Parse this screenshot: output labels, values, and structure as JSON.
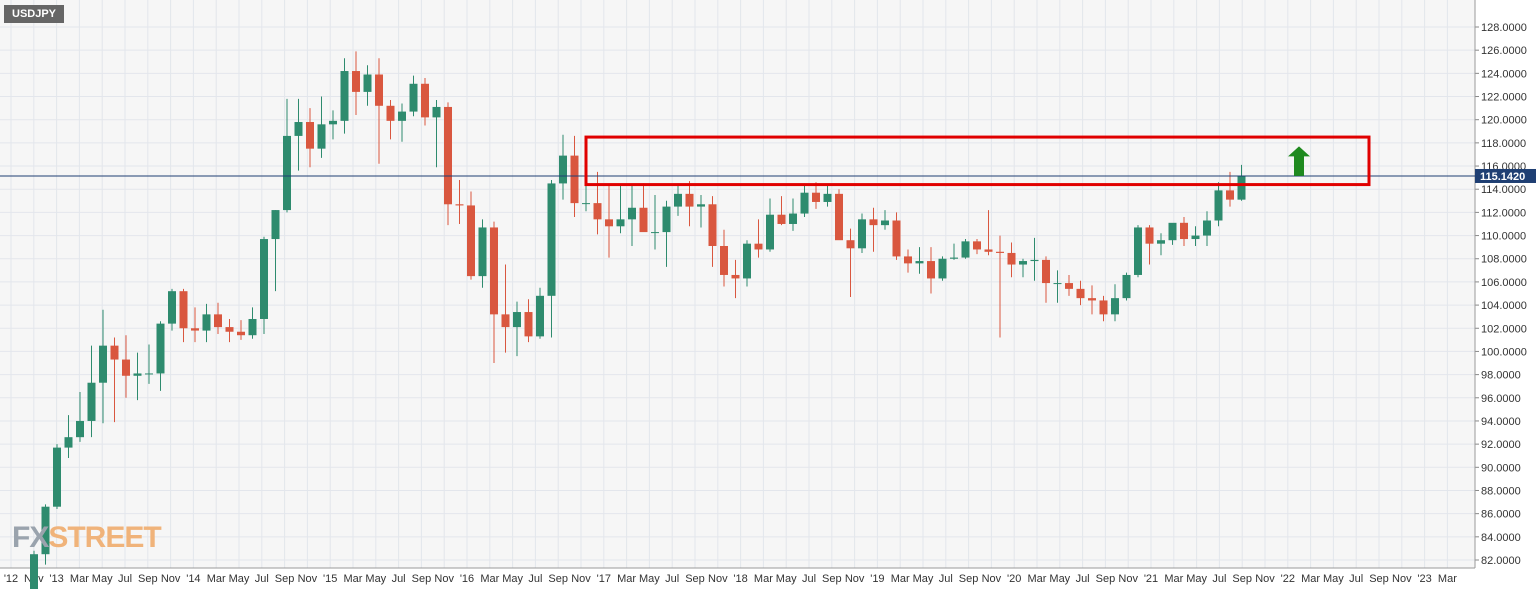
{
  "symbol": "USDJPY",
  "watermark": {
    "fx": "FX",
    "street": "STREET"
  },
  "colors": {
    "up": "#26a69a",
    "down": "#ef5350",
    "up_body": "#2e8b6e",
    "down_body": "#d9573f",
    "box": "#e00000",
    "arrow": "#1f8a1f",
    "price_line": "#1f3f73",
    "badge": "#1f3f73",
    "grid": "#e3e6ec",
    "plot_bg": "#f6f6f6"
  },
  "chart_data": {
    "type": "candlestick",
    "title": "",
    "xlabel": "",
    "ylabel": "",
    "ylim": [
      81.5,
      128.5
    ],
    "yticks": [
      "82.0000",
      "84.0000",
      "86.0000",
      "88.0000",
      "90.0000",
      "92.0000",
      "94.0000",
      "96.0000",
      "98.0000",
      "100.0000",
      "102.0000",
      "104.0000",
      "106.0000",
      "108.0000",
      "110.0000",
      "112.0000",
      "114.0000",
      "116.0000",
      "118.0000",
      "120.0000",
      "122.0000",
      "124.0000",
      "126.0000",
      "128.0000"
    ],
    "xticks": [
      "'12",
      "Nov",
      "'13",
      "Mar",
      "May",
      "Jul",
      "Sep",
      "Nov",
      "'14",
      "Mar",
      "May",
      "Jul",
      "Sep",
      "Nov",
      "'15",
      "Mar",
      "May",
      "Jul",
      "Sep",
      "Nov",
      "'16",
      "Mar",
      "May",
      "Jul",
      "Sep",
      "Nov",
      "'17",
      "Mar",
      "May",
      "Jul",
      "Sep",
      "Nov",
      "'18",
      "Mar",
      "May",
      "Jul",
      "Sep",
      "Nov",
      "'19",
      "Mar",
      "May",
      "Jul",
      "Sep",
      "Nov",
      "'20",
      "Mar",
      "May",
      "Jul",
      "Sep",
      "Nov",
      "'21",
      "Mar",
      "May",
      "Jul",
      "Sep",
      "Nov",
      "'22",
      "Mar",
      "May",
      "Jul",
      "Sep",
      "Nov",
      "'23",
      "Mar"
    ],
    "first_bar_month": "2012-11",
    "ohlc": [
      [
        78.2,
        82.8,
        78.0,
        82.5
      ],
      [
        82.5,
        86.8,
        81.6,
        86.6
      ],
      [
        86.6,
        92.0,
        86.4,
        91.7
      ],
      [
        91.7,
        94.5,
        90.8,
        92.6
      ],
      [
        92.6,
        96.5,
        92.2,
        94.0
      ],
      [
        94.0,
        100.5,
        92.6,
        97.3
      ],
      [
        97.3,
        103.6,
        93.8,
        100.5
      ],
      [
        100.5,
        101.2,
        93.9,
        99.3
      ],
      [
        99.3,
        101.4,
        96.0,
        97.9
      ],
      [
        97.9,
        99.9,
        95.8,
        98.1
      ],
      [
        98.1,
        100.6,
        97.2,
        98.1
      ],
      [
        98.1,
        102.6,
        96.6,
        102.4
      ],
      [
        102.4,
        105.4,
        101.8,
        105.2
      ],
      [
        105.2,
        105.4,
        100.8,
        102.0
      ],
      [
        102.0,
        103.8,
        100.8,
        101.8
      ],
      [
        101.8,
        104.1,
        100.8,
        103.2
      ],
      [
        103.2,
        104.2,
        101.5,
        102.1
      ],
      [
        102.1,
        102.8,
        100.8,
        101.7
      ],
      [
        101.7,
        102.7,
        101.0,
        101.4
      ],
      [
        101.4,
        103.8,
        101.1,
        102.8
      ],
      [
        102.8,
        109.9,
        101.5,
        109.7
      ],
      [
        109.7,
        112.2,
        105.2,
        112.2
      ],
      [
        112.2,
        121.8,
        112.0,
        118.6
      ],
      [
        118.6,
        121.8,
        115.6,
        119.8
      ],
      [
        119.8,
        121.0,
        115.9,
        117.5
      ],
      [
        117.5,
        122.0,
        116.7,
        119.6
      ],
      [
        119.6,
        120.8,
        118.3,
        119.9
      ],
      [
        119.9,
        125.3,
        118.8,
        124.2
      ],
      [
        124.2,
        125.9,
        120.4,
        122.4
      ],
      [
        122.4,
        124.7,
        121.2,
        123.9
      ],
      [
        123.9,
        125.3,
        116.2,
        121.2
      ],
      [
        121.2,
        121.7,
        118.3,
        119.9
      ],
      [
        119.9,
        121.4,
        118.1,
        120.7
      ],
      [
        120.7,
        123.8,
        120.3,
        123.1
      ],
      [
        123.1,
        123.6,
        119.5,
        120.2
      ],
      [
        120.2,
        121.7,
        115.9,
        121.1
      ],
      [
        121.1,
        121.5,
        110.9,
        112.7
      ],
      [
        112.7,
        114.8,
        111.0,
        112.6
      ],
      [
        112.6,
        113.8,
        106.2,
        106.5
      ],
      [
        106.5,
        111.4,
        105.5,
        110.7
      ],
      [
        110.7,
        111.2,
        99.0,
        103.2
      ],
      [
        103.2,
        107.5,
        99.9,
        102.1
      ],
      [
        102.1,
        104.3,
        99.6,
        103.4
      ],
      [
        103.4,
        104.5,
        100.8,
        101.3
      ],
      [
        101.3,
        105.5,
        101.1,
        104.8
      ],
      [
        104.8,
        114.8,
        101.2,
        114.5
      ],
      [
        114.5,
        118.7,
        113.1,
        116.9
      ],
      [
        116.9,
        118.6,
        111.6,
        112.8
      ],
      [
        112.8,
        115.0,
        112.1,
        112.8
      ],
      [
        112.8,
        115.5,
        110.1,
        111.4
      ],
      [
        111.4,
        114.4,
        108.1,
        110.8
      ],
      [
        110.8,
        114.4,
        110.2,
        111.4
      ],
      [
        111.4,
        114.4,
        109.1,
        112.4
      ],
      [
        112.4,
        114.5,
        110.6,
        110.3
      ],
      [
        110.3,
        113.5,
        108.8,
        110.3
      ],
      [
        110.3,
        113.0,
        107.3,
        112.5
      ],
      [
        112.5,
        114.5,
        111.7,
        113.6
      ],
      [
        113.6,
        114.7,
        110.8,
        112.5
      ],
      [
        112.5,
        113.5,
        110.7,
        112.7
      ],
      [
        112.7,
        113.4,
        107.3,
        109.1
      ],
      [
        109.1,
        110.5,
        105.6,
        106.6
      ],
      [
        106.6,
        107.9,
        104.6,
        106.3
      ],
      [
        106.3,
        109.6,
        105.6,
        109.3
      ],
      [
        109.3,
        111.4,
        108.1,
        108.8
      ],
      [
        108.8,
        113.2,
        108.6,
        111.8
      ],
      [
        111.8,
        113.4,
        110.9,
        111.0
      ],
      [
        111.0,
        113.2,
        110.4,
        111.9
      ],
      [
        111.9,
        114.5,
        111.6,
        113.7
      ],
      [
        113.7,
        114.6,
        112.3,
        112.9
      ],
      [
        112.9,
        114.3,
        112.5,
        113.6
      ],
      [
        113.6,
        114.0,
        109.7,
        109.6
      ],
      [
        109.6,
        110.6,
        104.7,
        108.9
      ],
      [
        108.9,
        111.9,
        108.5,
        111.4
      ],
      [
        111.4,
        112.4,
        108.6,
        110.9
      ],
      [
        110.9,
        112.2,
        110.5,
        111.3
      ],
      [
        111.3,
        112.0,
        107.9,
        108.2
      ],
      [
        108.2,
        108.8,
        106.8,
        107.6
      ],
      [
        107.6,
        109.0,
        106.7,
        107.8
      ],
      [
        107.8,
        109.0,
        105.0,
        106.3
      ],
      [
        106.3,
        108.2,
        106.1,
        108.0
      ],
      [
        108.0,
        109.3,
        107.9,
        108.1
      ],
      [
        108.1,
        109.7,
        108.0,
        109.5
      ],
      [
        109.5,
        109.7,
        108.4,
        108.8
      ],
      [
        108.8,
        112.2,
        108.3,
        108.6
      ],
      [
        108.6,
        110.0,
        101.2,
        108.5
      ],
      [
        108.5,
        109.4,
        106.4,
        107.5
      ],
      [
        107.5,
        108.0,
        106.4,
        107.8
      ],
      [
        107.8,
        109.8,
        106.1,
        107.9
      ],
      [
        107.9,
        108.2,
        104.2,
        105.9
      ],
      [
        105.9,
        107.0,
        104.2,
        105.9
      ],
      [
        105.9,
        106.6,
        104.8,
        105.4
      ],
      [
        105.4,
        106.1,
        104.0,
        104.6
      ],
      [
        104.6,
        105.7,
        103.2,
        104.4
      ],
      [
        104.4,
        104.8,
        102.6,
        103.2
      ],
      [
        103.2,
        105.8,
        102.6,
        104.6
      ],
      [
        104.6,
        106.8,
        104.4,
        106.6
      ],
      [
        106.6,
        110.9,
        106.4,
        110.7
      ],
      [
        110.7,
        110.9,
        107.5,
        109.3
      ],
      [
        109.3,
        110.2,
        108.3,
        109.6
      ],
      [
        109.6,
        110.9,
        109.2,
        111.1
      ],
      [
        111.1,
        111.6,
        109.1,
        109.7
      ],
      [
        109.7,
        110.8,
        109.1,
        110.0
      ],
      [
        110.0,
        112.1,
        109.1,
        111.3
      ],
      [
        111.3,
        114.6,
        110.8,
        113.9
      ],
      [
        113.9,
        115.5,
        112.5,
        113.1
      ],
      [
        113.1,
        116.1,
        113.0,
        115.1
      ]
    ],
    "resistance_zone": [
      114.4,
      118.5
    ],
    "last_price": "115.1420",
    "grid": true,
    "legend": "none"
  }
}
